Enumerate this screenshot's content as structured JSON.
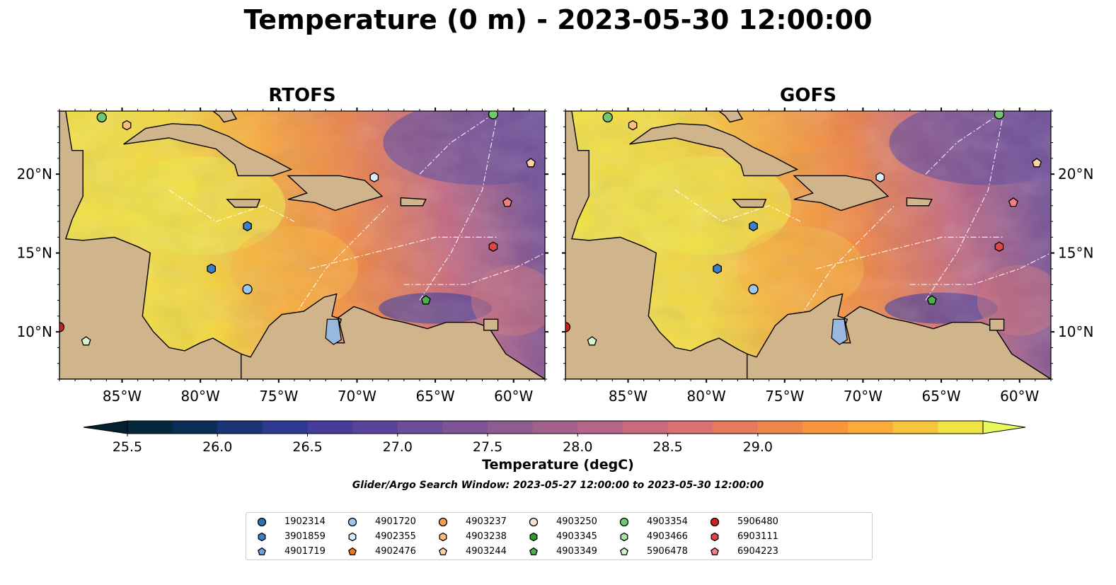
{
  "title": "Temperature (0 m) - 2023-05-30 12:00:00",
  "panels": [
    {
      "title": "RTOFS"
    },
    {
      "title": "GOFS"
    }
  ],
  "map_extent": {
    "lon_min": -89,
    "lon_max": -58,
    "lat_min": 7,
    "lat_max": 24
  },
  "axes": {
    "lon_ticks": [
      -85,
      -80,
      -75,
      -70,
      -65,
      -60
    ],
    "lon_labels": [
      "85°W",
      "80°W",
      "75°W",
      "70°W",
      "65°W",
      "60°W"
    ],
    "lat_ticks": [
      10,
      15,
      20
    ],
    "lat_labels": [
      "10°N",
      "15°N",
      "20°N"
    ]
  },
  "colorbar": {
    "label": "Temperature (degC)",
    "min": 25.5,
    "max": 29.25,
    "step": 0.25,
    "ticks": [
      "25.5",
      "26.0",
      "26.5",
      "27.0",
      "27.5",
      "28.0",
      "28.5",
      "29.0"
    ],
    "extend": "both",
    "colors": [
      "#04273a",
      "#0b2e58",
      "#1b3477",
      "#2f3890",
      "#463c9a",
      "#5a449a",
      "#6c4d98",
      "#7d5595",
      "#8f5c92",
      "#a3628e",
      "#b76689",
      "#c96a80",
      "#d97170",
      "#e7795e",
      "#f1864b",
      "#f7963d",
      "#faab39",
      "#f7c43d",
      "#f0e344"
    ],
    "extend_low": "#032030",
    "extend_high": "#e8fa5b"
  },
  "search_window": "Glider/Argo Search Window: 2023-05-27 12:00:00 to 2023-05-30 12:00:00",
  "land_color": "#cfb48c",
  "lake_color": "#98b8e0",
  "markers": [
    {
      "lon": -86.3,
      "lat": 23.6,
      "id": "4903354"
    },
    {
      "lon": -84.7,
      "lat": 23.1,
      "id": "4903238"
    },
    {
      "lon": -61.3,
      "lat": 23.8,
      "id": "4903354"
    },
    {
      "lon": -58.9,
      "lat": 20.7,
      "id": "4903244"
    },
    {
      "lon": -68.9,
      "lat": 19.8,
      "id": "4902355"
    },
    {
      "lon": -60.4,
      "lat": 18.2,
      "id": "6904223"
    },
    {
      "lon": -77.0,
      "lat": 16.7,
      "id": "3901859"
    },
    {
      "lon": -79.3,
      "lat": 14.0,
      "id": "3901859"
    },
    {
      "lon": -61.3,
      "lat": 15.4,
      "id": "6903111"
    },
    {
      "lon": -77.0,
      "lat": 12.7,
      "id": "4901720"
    },
    {
      "lon": -65.6,
      "lat": 12.0,
      "id": "4903349"
    },
    {
      "lon": -89.0,
      "lat": 10.3,
      "id": "5906480"
    },
    {
      "lon": -87.3,
      "lat": 9.4,
      "id": "5906478"
    }
  ],
  "legend": [
    {
      "id": "1902314",
      "shape": "circle",
      "color": "#2c6fb7"
    },
    {
      "id": "3901859",
      "shape": "hexagon",
      "color": "#3a82c8"
    },
    {
      "id": "4901719",
      "shape": "pentagon",
      "color": "#6fa3dd"
    },
    {
      "id": "4901720",
      "shape": "circle",
      "color": "#9cc6ec"
    },
    {
      "id": "4902355",
      "shape": "hexagon",
      "color": "#d6ecfb"
    },
    {
      "id": "4902476",
      "shape": "pentagon",
      "color": "#f07818"
    },
    {
      "id": "4903237",
      "shape": "circle",
      "color": "#f79d45"
    },
    {
      "id": "4903238",
      "shape": "hexagon",
      "color": "#fbbf7c"
    },
    {
      "id": "4903244",
      "shape": "pentagon",
      "color": "#fdd3a6"
    },
    {
      "id": "4903250",
      "shape": "circle",
      "color": "#fde5cc"
    },
    {
      "id": "4903345",
      "shape": "hexagon",
      "color": "#2a9d2a"
    },
    {
      "id": "4903349",
      "shape": "pentagon",
      "color": "#4caf4c"
    },
    {
      "id": "4903354",
      "shape": "circle",
      "color": "#73c773"
    },
    {
      "id": "4903466",
      "shape": "hexagon",
      "color": "#a9e2a2"
    },
    {
      "id": "5906478",
      "shape": "pentagon",
      "color": "#d4f4ce"
    },
    {
      "id": "5906480",
      "shape": "circle",
      "color": "#d21f1f"
    },
    {
      "id": "6903111",
      "shape": "hexagon",
      "color": "#e04646"
    },
    {
      "id": "6904223",
      "shape": "pentagon",
      "color": "#f28080"
    }
  ]
}
